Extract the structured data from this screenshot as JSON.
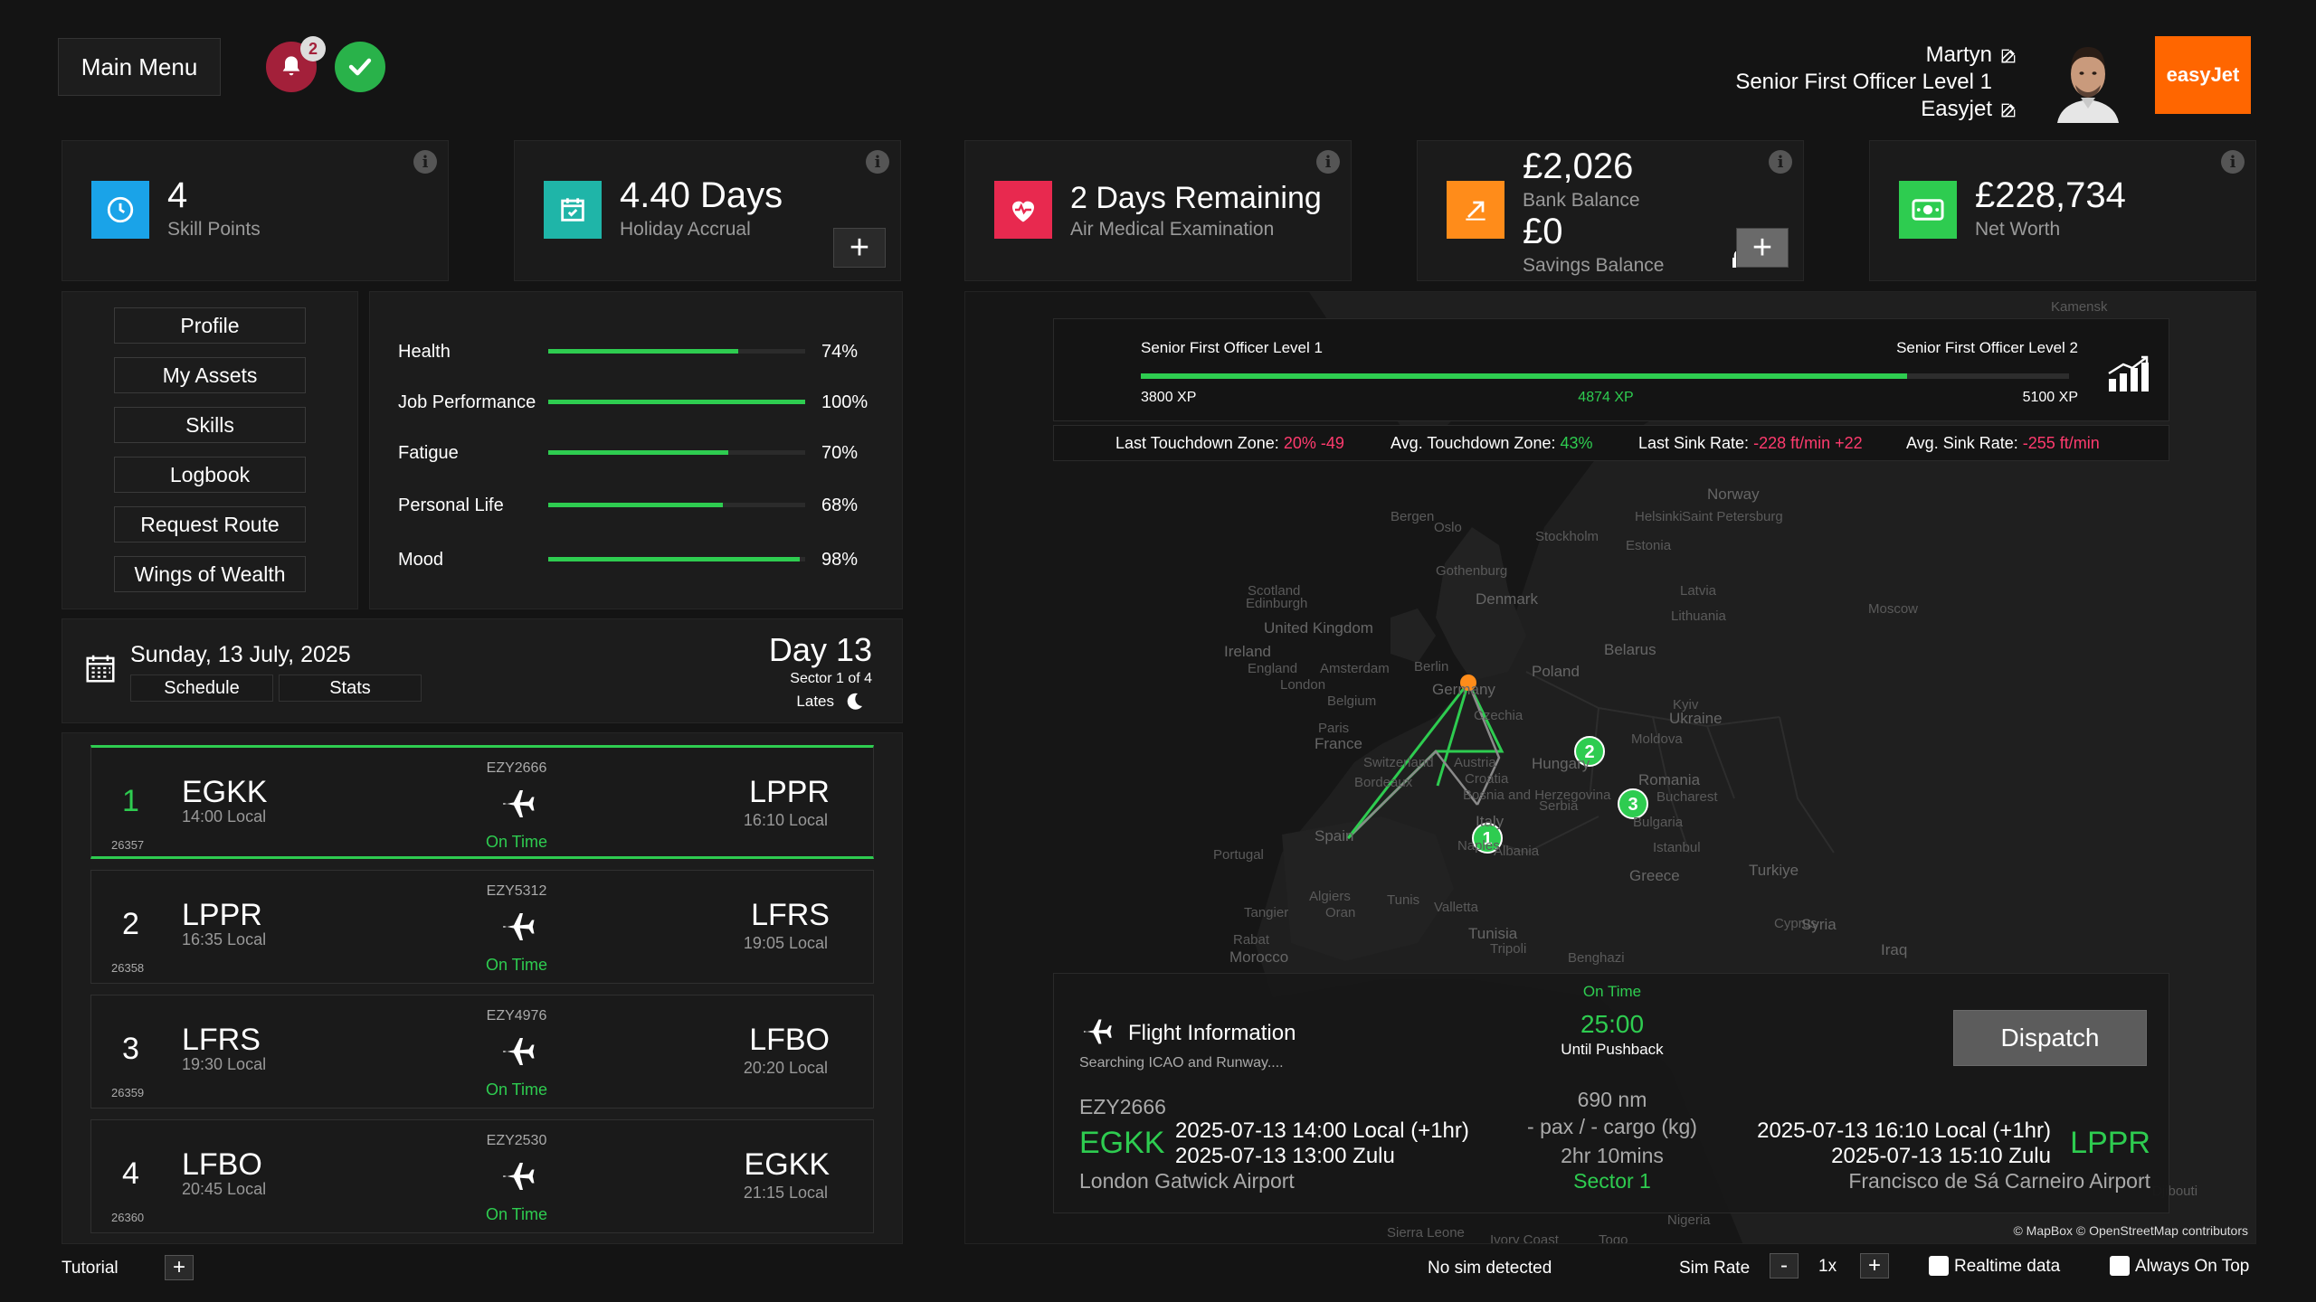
{
  "header": {
    "main_menu_label": "Main Menu",
    "notification_count": "2",
    "user_name": "Martyn",
    "rank": "Senior First Officer Level 1",
    "airline": "Easyjet",
    "airline_logo_text": "easyJet",
    "brand_color": "#ff6600"
  },
  "cards": {
    "skill": {
      "value": "4",
      "label": "Skill Points",
      "icon": "clock-icon",
      "color": "#1aa3e8"
    },
    "holiday": {
      "value": "4.40 Days",
      "label": "Holiday Accrual",
      "icon": "calendar-check-icon",
      "color": "#1fb5a8"
    },
    "medical": {
      "value": "2 Days Remaining",
      "label": "Air Medical Examination",
      "icon": "heart-pulse-icon",
      "color": "#e8294f"
    },
    "bank": {
      "value": "£2,026",
      "label": "Bank Balance",
      "savings_value": "£0",
      "savings_label": "Savings Balance",
      "icon": "growth-arrow-icon",
      "color": "#ff8c1a"
    },
    "networth": {
      "value": "£228,734",
      "label": "Net Worth",
      "icon": "money-icon",
      "color": "#2ecc50"
    }
  },
  "nav": [
    "Profile",
    "My Assets",
    "Skills",
    "Logbook",
    "Request Route",
    "Wings of Wealth"
  ],
  "stats": [
    {
      "label": "Health",
      "value": "74%",
      "fraction": 0.74
    },
    {
      "label": "Job Performance",
      "value": "100%",
      "fraction": 1.0
    },
    {
      "label": "Fatigue",
      "value": "70%",
      "fraction": 0.7
    },
    {
      "label": "Personal Life",
      "value": "68%",
      "fraction": 0.68
    },
    {
      "label": "Mood",
      "value": "98%",
      "fraction": 0.98
    }
  ],
  "schedule": {
    "date": "Sunday, 13 July, 2025",
    "tab_schedule": "Schedule",
    "tab_stats": "Stats",
    "day": "Day 13",
    "sector": "Sector 1 of 4",
    "shift": "Lates"
  },
  "legs": [
    {
      "num": "1",
      "reg": "26357",
      "dep": "EGKK",
      "dep_time": "14:00 Local",
      "flight": "EZY2666",
      "status": "On Time",
      "arr": "LPPR",
      "arr_time": "16:10 Local"
    },
    {
      "num": "2",
      "reg": "26358",
      "dep": "LPPR",
      "dep_time": "16:35 Local",
      "flight": "EZY5312",
      "status": "On Time",
      "arr": "LFRS",
      "arr_time": "19:05 Local"
    },
    {
      "num": "3",
      "reg": "26359",
      "dep": "LFRS",
      "dep_time": "19:30 Local",
      "flight": "EZY4976",
      "status": "On Time",
      "arr": "LFBO",
      "arr_time": "20:20 Local"
    },
    {
      "num": "4",
      "reg": "26360",
      "dep": "LFBO",
      "dep_time": "20:45 Local",
      "flight": "EZY2530",
      "status": "On Time",
      "arr": "EGKK",
      "arr_time": "21:15 Local"
    }
  ],
  "xp": {
    "current_rank": "Senior First Officer Level 1",
    "next_rank": "Senior First Officer Level 2",
    "min_xp": "3800 XP",
    "current_xp": "4874 XP",
    "max_xp": "5100 XP",
    "progress_fraction": 0.826
  },
  "landing": {
    "last_tdz_label": "Last Touchdown Zone:",
    "last_tdz_value": "20% -49",
    "avg_tdz_label": "Avg. Touchdown Zone:",
    "avg_tdz_value": "43%",
    "last_sink_label": "Last Sink Rate:",
    "last_sink_value": "-228 ft/min +22",
    "avg_sink_label": "Avg. Sink Rate:",
    "avg_sink_value": "-255 ft/min"
  },
  "map": {
    "markers": [
      "1",
      "2",
      "3"
    ],
    "labels": [
      "Kamensk",
      "Norway",
      "Bergen",
      "Oslo",
      "Stockholm",
      "Helsinki",
      "Saint Petersburg",
      "Estonia",
      "Gothenburg",
      "Latvia",
      "Denmark",
      "Lithuania",
      "Moscow",
      "Scotland",
      "Edinburgh",
      "United Kingdom",
      "Ireland",
      "England",
      "London",
      "Amsterdam",
      "Belgium",
      "Berlin",
      "Germany",
      "Poland",
      "Belarus",
      "Czechia",
      "Kyiv",
      "Ukraine",
      "Paris",
      "France",
      "Switzerland",
      "Austria",
      "Hungary",
      "Moldova",
      "Croatia",
      "Bosnia and Herzegovina",
      "Romania",
      "Bucharest",
      "Bordeaux",
      "Serbia",
      "Bulgaria",
      "Italy",
      "Spain",
      "Portugal",
      "Naples",
      "Albania",
      "Istanbul",
      "Greece",
      "Turkiye",
      "Algiers",
      "Tunis",
      "Tangier",
      "Oran",
      "Valletta",
      "Tunisia",
      "Rabat",
      "Morocco",
      "Tripoli",
      "Benghazi",
      "Cyprus",
      "Syria",
      "Iraq",
      "Nigeria",
      "Sierra Leone",
      "Ivory Coast",
      "Togo",
      "Djibouti"
    ],
    "attribution": "© MapBox © OpenStreetMap contributors"
  },
  "flight_info": {
    "title": "Flight Information",
    "subtitle": "Searching ICAO and Runway....",
    "status": "On Time",
    "countdown": "25:00",
    "countdown_label": "Until Pushback",
    "dispatch_label": "Dispatch",
    "flight_no": "EZY2666",
    "dep_icao": "EGKK",
    "dep_local": "2025-07-13 14:00 Local (+1hr)",
    "dep_zulu": "2025-07-13 13:00 Zulu",
    "dep_name": "London Gatwick Airport",
    "distance": "690 nm",
    "payload": "- pax / - cargo (kg)",
    "duration": "2hr 10mins",
    "sector": "Sector 1",
    "arr_local": "2025-07-13 16:10 Local (+1hr)",
    "arr_zulu": "2025-07-13 15:10 Zulu",
    "arr_icao": "LPPR",
    "arr_name": "Francisco de Sá Carneiro Airport"
  },
  "footer": {
    "tutorial": "Tutorial",
    "sim_status": "No sim detected",
    "sim_rate_label": "Sim Rate",
    "sim_rate_value": "1x",
    "minus": "-",
    "plus": "+",
    "realtime": "Realtime data",
    "always_on_top": "Always On Top"
  }
}
